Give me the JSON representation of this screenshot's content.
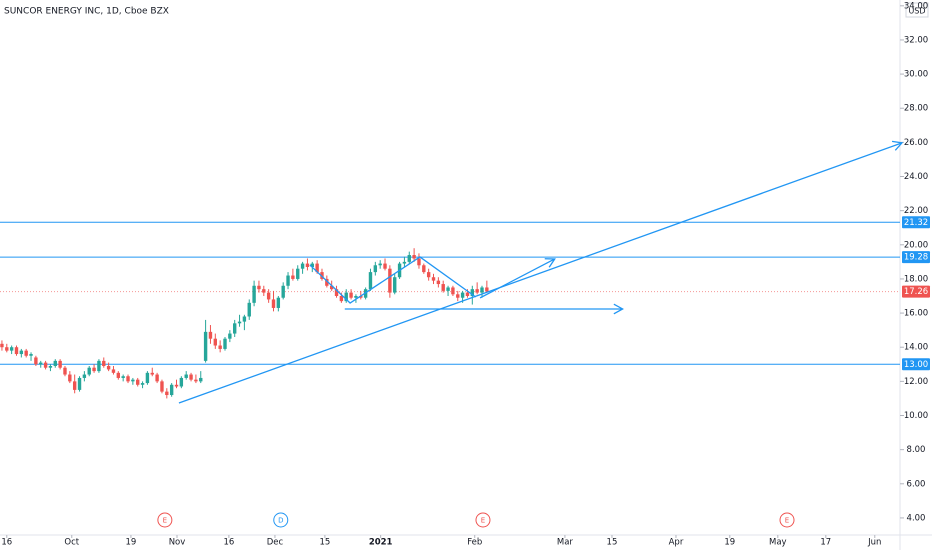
{
  "chart_data": {
    "type": "candlestick",
    "title": "SUNCOR ENERGY INC, 1D, Cboe BZX",
    "currency": "USD",
    "up_color": "#26a69a",
    "down_color": "#ef5350",
    "drawing_color": "#2196f3",
    "grid": false,
    "xlim": [
      -0.4,
      185.2
    ],
    "ylim": [
      3,
      34.34
    ],
    "yticks": [
      {
        "value": 4,
        "label": "4.00"
      },
      {
        "value": 6,
        "label": "6.00"
      },
      {
        "value": 8,
        "label": "8.00"
      },
      {
        "value": 10,
        "label": "10.00"
      },
      {
        "value": 12,
        "label": "12.00"
      },
      {
        "value": 14,
        "label": "14.00"
      },
      {
        "value": 16,
        "label": "16.00"
      },
      {
        "value": 18,
        "label": "18.00"
      },
      {
        "value": 20,
        "label": "20.00"
      },
      {
        "value": 22,
        "label": "22.00"
      },
      {
        "value": 24,
        "label": "24.00"
      },
      {
        "value": 26,
        "label": "26.00"
      },
      {
        "value": 28,
        "label": "28.00"
      },
      {
        "value": 30,
        "label": "30.00"
      },
      {
        "value": 32,
        "label": "32.00"
      },
      {
        "value": 34,
        "label": "34.00"
      }
    ],
    "xticks": [
      {
        "value": 1,
        "label": "16"
      },
      {
        "value": 14.4,
        "label": "Oct"
      },
      {
        "value": 26.6,
        "label": "19"
      },
      {
        "value": 36.1,
        "label": "Nov"
      },
      {
        "value": 46.8,
        "label": "16"
      },
      {
        "value": 56.3,
        "label": "Dec"
      },
      {
        "value": 66.6,
        "label": "15"
      },
      {
        "value": 78.1,
        "label": "2021"
      },
      {
        "value": 97.5,
        "label": "Feb"
      },
      {
        "value": 116.1,
        "label": "Mar"
      },
      {
        "value": 125.8,
        "label": "15"
      },
      {
        "value": 139,
        "label": "Apr"
      },
      {
        "value": 150.1,
        "label": "19"
      },
      {
        "value": 160,
        "label": "May"
      },
      {
        "value": 169.9,
        "label": "17"
      },
      {
        "value": 180,
        "label": "Jun"
      }
    ],
    "ohlc": [
      [
        14.2,
        14.4,
        13.8,
        14.0
      ],
      [
        14.0,
        14.2,
        13.7,
        13.8
      ],
      [
        13.8,
        14.1,
        13.6,
        14.0
      ],
      [
        14.0,
        14.1,
        13.5,
        13.6
      ],
      [
        13.6,
        13.9,
        13.4,
        13.8
      ],
      [
        13.8,
        13.9,
        13.4,
        13.5
      ],
      [
        13.5,
        13.7,
        13.2,
        13.6
      ],
      [
        13.4,
        13.5,
        12.9,
        13.0
      ],
      [
        13.0,
        13.2,
        12.8,
        13.1
      ],
      [
        13.1,
        13.2,
        12.7,
        12.8
      ],
      [
        12.8,
        13.0,
        12.6,
        12.9
      ],
      [
        12.9,
        13.3,
        12.8,
        13.2
      ],
      [
        13.2,
        13.3,
        12.7,
        12.8
      ],
      [
        12.8,
        12.9,
        12.3,
        12.4
      ],
      [
        12.4,
        12.6,
        11.9,
        12.0
      ],
      [
        12.0,
        12.4,
        11.3,
        11.5
      ],
      [
        11.5,
        12.3,
        11.4,
        12.2
      ],
      [
        12.2,
        12.6,
        12.0,
        12.4
      ],
      [
        12.4,
        12.9,
        12.3,
        12.8
      ],
      [
        12.8,
        13.0,
        12.5,
        12.6
      ],
      [
        12.6,
        13.3,
        12.5,
        13.2
      ],
      [
        13.2,
        13.4,
        12.8,
        12.9
      ],
      [
        12.9,
        13.1,
        12.6,
        12.7
      ],
      [
        12.7,
        12.9,
        12.4,
        12.5
      ],
      [
        12.5,
        12.6,
        12.1,
        12.2
      ],
      [
        12.2,
        12.4,
        12.0,
        12.3
      ],
      [
        12.3,
        12.4,
        11.9,
        12.0
      ],
      [
        12.0,
        12.2,
        11.8,
        12.1
      ],
      [
        12.1,
        12.2,
        11.7,
        11.8
      ],
      [
        11.8,
        12.0,
        11.6,
        11.9
      ],
      [
        11.9,
        12.6,
        11.8,
        12.5
      ],
      [
        12.5,
        12.8,
        12.3,
        12.4
      ],
      [
        12.4,
        12.5,
        11.9,
        12.0
      ],
      [
        12.0,
        12.1,
        11.3,
        11.4
      ],
      [
        11.4,
        11.6,
        11.0,
        11.2
      ],
      [
        11.2,
        11.9,
        11.1,
        11.8
      ],
      [
        11.8,
        12.1,
        11.6,
        11.7
      ],
      [
        11.7,
        12.3,
        11.6,
        12.2
      ],
      [
        12.2,
        12.6,
        12.1,
        12.4
      ],
      [
        12.4,
        12.5,
        12.0,
        12.1
      ],
      [
        12.1,
        12.4,
        11.9,
        12.0
      ],
      [
        12.0,
        12.6,
        11.9,
        12.2
      ],
      [
        13.2,
        15.6,
        13.1,
        14.9
      ],
      [
        14.9,
        15.3,
        14.2,
        14.5
      ],
      [
        14.5,
        14.8,
        13.9,
        14.1
      ],
      [
        14.1,
        14.4,
        13.7,
        13.9
      ],
      [
        13.9,
        14.6,
        13.8,
        14.5
      ],
      [
        14.5,
        15.0,
        14.3,
        14.8
      ],
      [
        14.8,
        15.6,
        14.6,
        15.4
      ],
      [
        15.4,
        15.9,
        15.2,
        15.5
      ],
      [
        15.5,
        15.9,
        15.0,
        15.8
      ],
      [
        15.8,
        16.8,
        15.6,
        16.6
      ],
      [
        16.6,
        17.9,
        16.4,
        17.6
      ],
      [
        17.6,
        17.9,
        17.2,
        17.4
      ],
      [
        17.4,
        17.6,
        17.0,
        17.2
      ],
      [
        17.2,
        17.4,
        16.6,
        16.8
      ],
      [
        16.8,
        17.3,
        16.1,
        16.3
      ],
      [
        16.3,
        17.0,
        16.1,
        16.9
      ],
      [
        16.9,
        17.8,
        16.8,
        17.6
      ],
      [
        17.6,
        18.4,
        17.4,
        18.2
      ],
      [
        18.2,
        18.6,
        17.9,
        18.0
      ],
      [
        18.0,
        18.8,
        17.9,
        18.6
      ],
      [
        18.6,
        19.0,
        18.3,
        18.9
      ],
      [
        18.9,
        19.2,
        18.5,
        18.7
      ],
      [
        18.7,
        19.0,
        18.4,
        18.9
      ],
      [
        18.9,
        19.1,
        18.3,
        18.4
      ],
      [
        18.4,
        18.6,
        17.9,
        18.0
      ],
      [
        18.0,
        18.2,
        17.5,
        17.6
      ],
      [
        17.6,
        17.9,
        17.3,
        17.4
      ],
      [
        17.4,
        17.6,
        16.9,
        17.0
      ],
      [
        17.0,
        17.2,
        16.6,
        16.7
      ],
      [
        16.7,
        17.4,
        16.6,
        17.2
      ],
      [
        17.2,
        17.4,
        16.8,
        16.9
      ],
      [
        16.9,
        17.1,
        16.6,
        17.0
      ],
      [
        17.0,
        17.3,
        16.8,
        16.9
      ],
      [
        16.9,
        17.5,
        16.8,
        17.4
      ],
      [
        17.4,
        18.6,
        17.3,
        18.4
      ],
      [
        18.4,
        19.0,
        18.2,
        18.8
      ],
      [
        18.8,
        19.1,
        18.6,
        18.9
      ],
      [
        18.9,
        19.2,
        18.5,
        18.6
      ],
      [
        18.6,
        18.8,
        16.9,
        17.2
      ],
      [
        17.2,
        18.3,
        17.1,
        18.1
      ],
      [
        18.1,
        19.0,
        18.0,
        18.9
      ],
      [
        18.9,
        19.3,
        18.7,
        19.0
      ],
      [
        19.0,
        19.6,
        18.9,
        19.4
      ],
      [
        19.4,
        19.8,
        19.0,
        19.2
      ],
      [
        19.2,
        19.5,
        18.6,
        18.8
      ],
      [
        18.8,
        18.9,
        18.3,
        18.4
      ],
      [
        18.4,
        18.6,
        17.9,
        18.1
      ],
      [
        18.1,
        18.3,
        17.7,
        17.9
      ],
      [
        17.9,
        18.1,
        17.5,
        17.7
      ],
      [
        17.7,
        17.9,
        17.2,
        17.3
      ],
      [
        17.3,
        17.6,
        17.0,
        17.5
      ],
      [
        17.5,
        17.6,
        17.0,
        17.1
      ],
      [
        17.1,
        17.3,
        16.7,
        16.9
      ],
      [
        16.9,
        17.3,
        16.6,
        17.2
      ],
      [
        17.2,
        17.4,
        16.9,
        17.0
      ],
      [
        17.0,
        17.6,
        16.5,
        17.4
      ],
      [
        17.4,
        17.8,
        17.1,
        17.2
      ],
      [
        17.2,
        17.6,
        16.9,
        17.5
      ],
      [
        17.5,
        17.9,
        17.3,
        17.26
      ]
    ],
    "hlines": [
      21.32,
      19.28,
      {
        "value": 13,
        "label": "13.00"
      }
    ],
    "last_price": 17.26,
    "drawings": [
      {
        "x": [
          36.5,
          185.6
        ],
        "y": [
          10.73,
          25.97
        ],
        "arrow": true
      },
      {
        "x": [
          70.7,
          128
        ],
        "y": [
          16.24,
          16.24
        ],
        "arrow": true
      },
      {
        "x": [
          98.6,
          114
        ],
        "y": [
          16.89,
          19.17
        ],
        "arrow": true
      },
      {
        "x": [
          63.5,
          71.8,
          86.2,
          97.7
        ],
        "y": [
          18.82,
          16.59,
          19.29,
          16.94
        ],
        "arrow": false
      }
    ],
    "events": [
      {
        "x": 33.6,
        "label": "E"
      },
      {
        "x": 57.5,
        "label": "D"
      },
      {
        "x": 99.2,
        "label": "E"
      },
      {
        "x": 161.9,
        "label": "E"
      }
    ]
  }
}
